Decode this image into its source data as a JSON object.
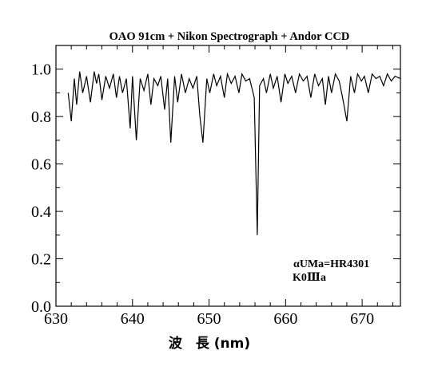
{
  "chart_data": {
    "type": "line",
    "title": "OAO 91cm + Nikon Spectrograph + Andor CCD",
    "xlabel": "波　長 (nm)",
    "ylabel": "",
    "xlim": [
      630,
      675
    ],
    "ylim": [
      0.0,
      1.1
    ],
    "x_ticks": [
      630,
      640,
      650,
      660,
      670
    ],
    "y_ticks": [
      0.0,
      0.2,
      0.4,
      0.6,
      0.8,
      1.0
    ],
    "y_tick_labels": [
      "0.0",
      "0.2",
      "0.4",
      "0.6",
      "0.8",
      "1.0"
    ],
    "x_minor_step": 2,
    "y_minor_step": 0.1,
    "grid": false,
    "annotations": [
      "αUMa=HR4301",
      "K0Ⅲa"
    ],
    "series": [
      {
        "x": [
          631.6,
          632.0,
          632.4,
          632.7,
          633.1,
          633.5,
          634.0,
          634.5,
          635.0,
          635.3,
          635.6,
          636.0,
          636.5,
          637.0,
          637.5,
          637.9,
          638.3,
          638.7,
          639.2,
          639.7,
          640.0,
          640.5,
          641.0,
          641.5,
          642.0,
          642.4,
          642.8,
          643.3,
          643.7,
          644.2,
          644.6,
          645.0,
          645.5,
          645.9,
          646.4,
          646.9,
          647.4,
          647.9,
          648.4,
          648.8,
          649.2,
          649.7,
          650.1,
          650.6,
          651.0,
          651.5,
          652.0,
          652.4,
          652.9,
          653.4,
          653.9,
          654.3,
          654.8,
          655.3,
          655.9,
          656.3,
          656.6,
          657.1,
          657.5,
          658.0,
          658.4,
          658.9,
          659.4,
          659.9,
          660.3,
          660.8,
          661.3,
          661.8,
          662.3,
          662.8,
          663.3,
          663.8,
          664.3,
          664.8,
          665.2,
          665.6,
          666.0,
          666.5,
          667.0,
          667.5,
          668.0,
          668.5,
          669.0,
          669.4,
          669.9,
          670.3,
          670.8,
          671.3,
          671.8,
          672.3,
          672.8,
          673.3,
          673.8,
          674.3,
          675.0
        ],
        "y": [
          0.9,
          0.78,
          0.96,
          0.85,
          0.99,
          0.9,
          0.97,
          0.86,
          0.99,
          0.94,
          0.98,
          0.87,
          0.97,
          0.92,
          0.98,
          0.88,
          0.97,
          0.9,
          0.96,
          0.75,
          0.97,
          0.7,
          0.96,
          0.91,
          0.98,
          0.85,
          0.96,
          0.93,
          0.97,
          0.83,
          0.96,
          0.69,
          0.97,
          0.86,
          0.98,
          0.9,
          0.96,
          0.92,
          0.97,
          0.8,
          0.69,
          0.96,
          0.9,
          0.98,
          0.93,
          0.97,
          0.88,
          0.98,
          0.94,
          0.97,
          0.9,
          0.98,
          0.95,
          0.96,
          0.88,
          0.3,
          0.93,
          0.96,
          0.9,
          0.98,
          0.92,
          0.97,
          0.86,
          0.98,
          0.94,
          0.97,
          0.9,
          0.98,
          0.95,
          0.97,
          0.88,
          0.98,
          0.93,
          0.96,
          0.85,
          0.97,
          0.9,
          0.98,
          0.95,
          0.87,
          0.78,
          0.97,
          0.9,
          0.98,
          0.95,
          0.97,
          0.9,
          0.98,
          0.96,
          0.97,
          0.93,
          0.98,
          0.95,
          0.97,
          0.96
        ]
      }
    ]
  }
}
